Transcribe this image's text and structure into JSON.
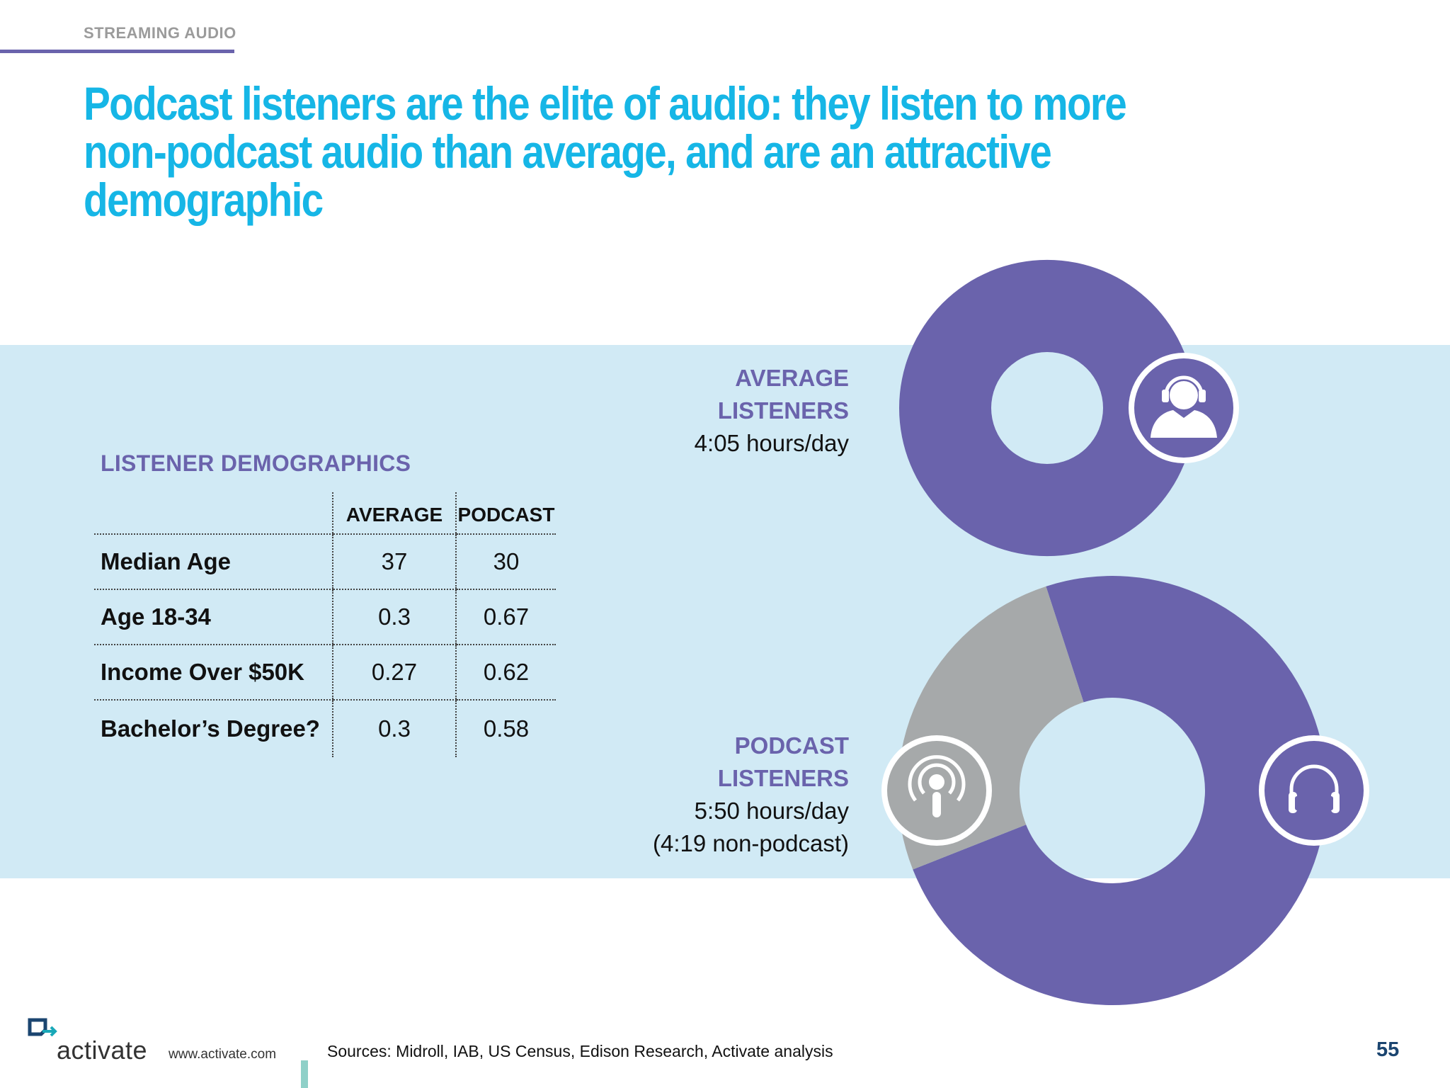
{
  "header": {
    "section": "STREAMING AUDIO",
    "title": "Podcast listeners are the elite of audio: they listen to more non-podcast audio than average, and are an attractive demographic"
  },
  "demographics": {
    "title": "LISTENER DEMOGRAPHICS",
    "columns": [
      "AVERAGE",
      "PODCAST"
    ],
    "rows": [
      {
        "label": "Median Age",
        "average": "37",
        "podcast": "30"
      },
      {
        "label": "Age 18-34",
        "average": "0.3",
        "podcast": "0.67"
      },
      {
        "label": "Income Over $50K",
        "average": "0.27",
        "podcast": "0.62"
      },
      {
        "label": "Bachelor’s Degree?",
        "average": "0.3",
        "podcast": "0.58"
      }
    ]
  },
  "labels": {
    "average_line1": "AVERAGE",
    "average_line2": "LISTENERS",
    "average_time": "4:05 hours/day",
    "podcast_line1": "PODCAST",
    "podcast_line2": "LISTENERS",
    "podcast_time": "5:50 hours/day",
    "podcast_sub": "(4:19 non-podcast)"
  },
  "chart_data": [
    {
      "type": "pie",
      "categories": [
        "Non-podcast audio"
      ],
      "values": [
        245
      ],
      "unit": "minutes/day",
      "colors": [
        "#6a63ac"
      ],
      "icons": [
        "listener-headphones-icon"
      ]
    },
    {
      "type": "pie",
      "categories": [
        "Non-podcast audio",
        "Podcast audio"
      ],
      "values": [
        259,
        91
      ],
      "unit": "minutes/day",
      "colors": [
        "#6a63ac",
        "#a6a9aa"
      ],
      "icons": [
        "headphones-icon",
        "podcast-icon"
      ]
    }
  ],
  "footer": {
    "brand": "activate",
    "url": "www.activate.com",
    "sources": "Sources: Midroll, IAB, US Census, Edison Research, Activate analysis",
    "page": "55"
  }
}
